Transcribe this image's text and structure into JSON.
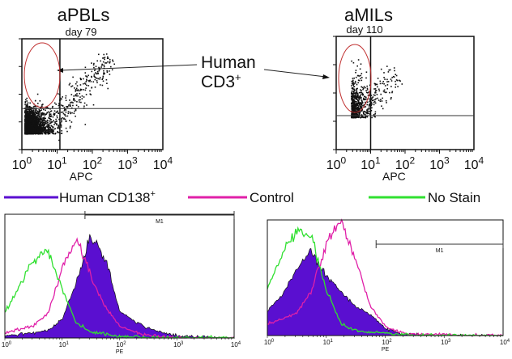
{
  "annotation": {
    "line1": "Human",
    "line2": "CD3",
    "sup": "+"
  },
  "legend": {
    "items": [
      {
        "label": "Human CD138",
        "sup": "+",
        "color": "#5a0fd0"
      },
      {
        "label": "Control",
        "sup": "",
        "color": "#e020a8"
      },
      {
        "label": "No Stain",
        "sup": "",
        "color": "#30e030"
      }
    ]
  },
  "chart_data": [
    {
      "type": "scatter",
      "title": "aPBLs",
      "subtitle": "day 79",
      "xlabel": "APC",
      "x_ticks": [
        "10^0",
        "10^1",
        "10^2",
        "10^3",
        "10^4"
      ],
      "xscale": "log",
      "xlim": [
        1,
        10000
      ],
      "gate_color": "#c03030",
      "quadrant_x": 12,
      "quadrant_y_fraction": 0.37
    },
    {
      "type": "scatter",
      "title": "aMILs",
      "subtitle": "day 110",
      "xlabel": "APC",
      "x_ticks": [
        "10^0",
        "10^1",
        "10^2",
        "10^3",
        "10^4"
      ],
      "xscale": "log",
      "xlim": [
        1,
        10000
      ],
      "gate_color": "#c03030",
      "quadrant_x": 10,
      "quadrant_y_fraction": 0.3
    },
    {
      "type": "area",
      "xlabel": "PE",
      "xscale": "log",
      "xlim": [
        1,
        10000
      ],
      "x_ticks": [
        "10^0",
        "10^1",
        "10^2",
        "10^3",
        "10^4"
      ],
      "marker": {
        "label": "M1",
        "from": 25,
        "to": 10000
      },
      "x": [
        1,
        1.78,
        3.16,
        5.62,
        10,
        17.8,
        31.6,
        56.2,
        100,
        178,
        316,
        562,
        1000,
        1778,
        3162,
        5623,
        10000
      ],
      "series": [
        {
          "name": "Human CD138+",
          "values": [
            2,
            3,
            4,
            6,
            15,
            45,
            82,
            65,
            22,
            14,
            8,
            4,
            2,
            1,
            1,
            0,
            0
          ]
        },
        {
          "name": "Control",
          "values": [
            4,
            7,
            10,
            20,
            55,
            80,
            50,
            25,
            10,
            5,
            2,
            1,
            0,
            0,
            0,
            0,
            0
          ]
        },
        {
          "name": "No Stain",
          "values": [
            20,
            42,
            62,
            72,
            40,
            12,
            5,
            3,
            1,
            1,
            0,
            0,
            0,
            0,
            0,
            0,
            0
          ]
        }
      ]
    },
    {
      "type": "area",
      "xlabel": "PE",
      "xscale": "log",
      "xlim": [
        1,
        10000
      ],
      "x_ticks": [
        "10^0",
        "10^1",
        "10^2",
        "10^3",
        "10^4"
      ],
      "marker": {
        "label": "M1",
        "from": 70,
        "to": 10000
      },
      "x": [
        1,
        1.78,
        3.16,
        5.62,
        10,
        17.8,
        31.6,
        56.2,
        100,
        178,
        316,
        562,
        1000,
        1778,
        3162,
        5623,
        10000
      ],
      "series": [
        {
          "name": "Human CD138+",
          "values": [
            22,
            35,
            58,
            72,
            52,
            38,
            25,
            18,
            6,
            2,
            1,
            0,
            0,
            0,
            0,
            0,
            0
          ]
        },
        {
          "name": "Control",
          "values": [
            10,
            14,
            20,
            38,
            80,
            100,
            65,
            25,
            8,
            3,
            1,
            1,
            1,
            0,
            0,
            0,
            0
          ]
        },
        {
          "name": "No Stain",
          "values": [
            40,
            70,
            92,
            85,
            40,
            10,
            4,
            3,
            2,
            1,
            0,
            0,
            0,
            0,
            0,
            0,
            0
          ]
        }
      ]
    }
  ]
}
